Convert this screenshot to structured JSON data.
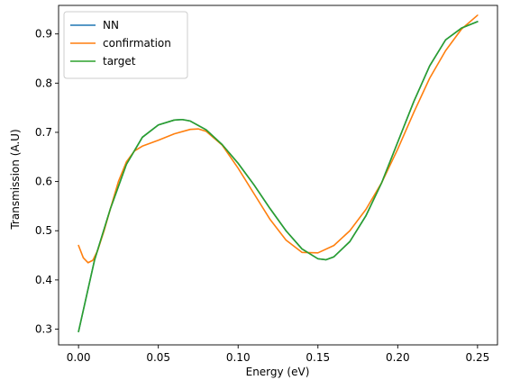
{
  "chart_data": {
    "type": "line",
    "xlabel": "Energy (eV)",
    "ylabel": "Transmission (A.U)",
    "xlim": [
      -0.0125,
      0.2625
    ],
    "ylim": [
      0.268,
      0.958
    ],
    "xticks": [
      0.0,
      0.05,
      0.1,
      0.15,
      0.2,
      0.25
    ],
    "xtick_labels": [
      "0.00",
      "0.05",
      "0.10",
      "0.15",
      "0.20",
      "0.25"
    ],
    "yticks": [
      0.3,
      0.4,
      0.5,
      0.6,
      0.7,
      0.8,
      0.9
    ],
    "ytick_labels": [
      "0.3",
      "0.4",
      "0.5",
      "0.6",
      "0.7",
      "0.8",
      "0.9"
    ],
    "grid": false,
    "legend_position": "upper-left",
    "series": [
      {
        "name": "NN",
        "color": "#1f77b4",
        "x": [
          0.0,
          0.01,
          0.02,
          0.03,
          0.04,
          0.05,
          0.06,
          0.065,
          0.07,
          0.08,
          0.09,
          0.1,
          0.11,
          0.12,
          0.13,
          0.14,
          0.15,
          0.155,
          0.16,
          0.17,
          0.18,
          0.19,
          0.2,
          0.21,
          0.22,
          0.23,
          0.24,
          0.25
        ],
        "y": [
          0.295,
          0.44,
          0.545,
          0.635,
          0.69,
          0.715,
          0.725,
          0.726,
          0.723,
          0.705,
          0.675,
          0.637,
          0.593,
          0.545,
          0.5,
          0.463,
          0.443,
          0.441,
          0.447,
          0.478,
          0.53,
          0.598,
          0.68,
          0.762,
          0.835,
          0.888,
          0.912,
          0.925
        ]
      },
      {
        "name": "confirmation",
        "color": "#ff7f0e",
        "x": [
          0.0,
          0.003,
          0.006,
          0.009,
          0.012,
          0.016,
          0.02,
          0.025,
          0.03,
          0.035,
          0.04,
          0.05,
          0.06,
          0.07,
          0.075,
          0.08,
          0.09,
          0.1,
          0.11,
          0.12,
          0.13,
          0.14,
          0.15,
          0.16,
          0.17,
          0.18,
          0.19,
          0.2,
          0.21,
          0.22,
          0.23,
          0.24,
          0.25
        ],
        "y": [
          0.47,
          0.445,
          0.435,
          0.44,
          0.46,
          0.5,
          0.545,
          0.6,
          0.64,
          0.662,
          0.672,
          0.684,
          0.697,
          0.706,
          0.707,
          0.702,
          0.674,
          0.627,
          0.575,
          0.523,
          0.481,
          0.456,
          0.455,
          0.47,
          0.5,
          0.543,
          0.598,
          0.666,
          0.74,
          0.81,
          0.866,
          0.91,
          0.938
        ]
      },
      {
        "name": "target",
        "color": "#2ca02c",
        "x": [
          0.0,
          0.01,
          0.02,
          0.03,
          0.04,
          0.05,
          0.06,
          0.065,
          0.07,
          0.08,
          0.09,
          0.1,
          0.11,
          0.12,
          0.13,
          0.14,
          0.15,
          0.155,
          0.16,
          0.17,
          0.18,
          0.19,
          0.2,
          0.21,
          0.22,
          0.23,
          0.24,
          0.25
        ],
        "y": [
          0.295,
          0.44,
          0.545,
          0.635,
          0.69,
          0.715,
          0.725,
          0.726,
          0.723,
          0.705,
          0.675,
          0.637,
          0.593,
          0.545,
          0.5,
          0.463,
          0.443,
          0.441,
          0.447,
          0.478,
          0.53,
          0.598,
          0.68,
          0.762,
          0.835,
          0.888,
          0.912,
          0.925
        ]
      }
    ]
  }
}
